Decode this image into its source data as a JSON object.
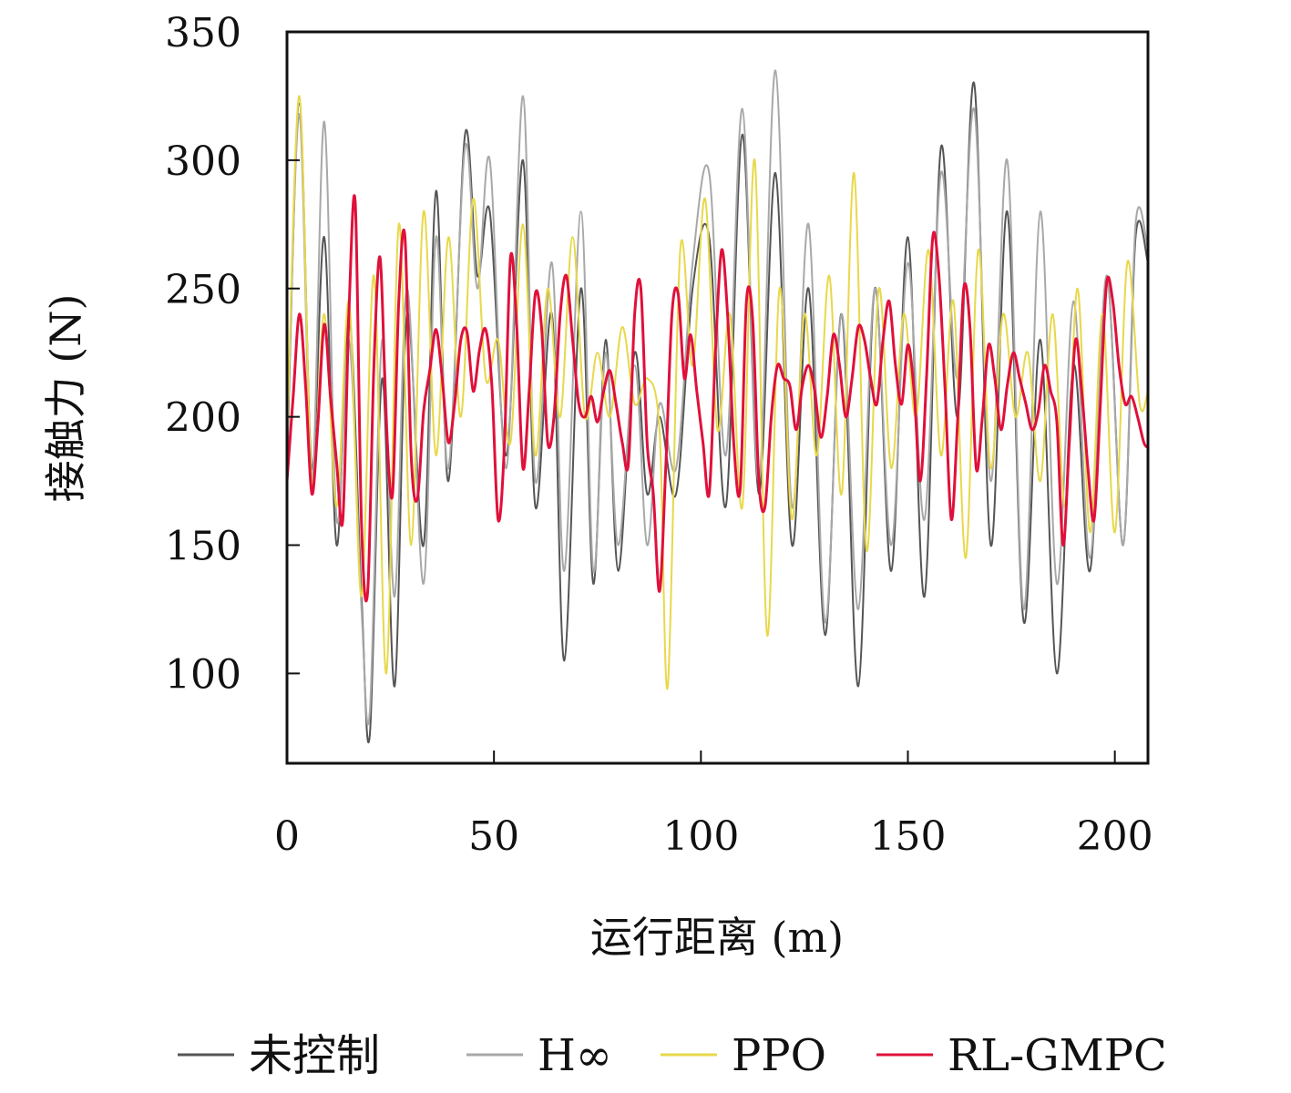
{
  "chart_data": {
    "type": "line",
    "xlabel": "运行距离 (m)",
    "ylabel": "接触力 (N)",
    "xlim": [
      0,
      208
    ],
    "ylim": [
      65,
      350
    ],
    "xticks": [
      0,
      50,
      100,
      150,
      200
    ],
    "yticks": [
      100,
      150,
      200,
      250,
      300,
      350
    ],
    "grid": false,
    "legend_position": "bottom",
    "series": [
      {
        "name": "未控制",
        "color": "#555555",
        "x": [
          0,
          3,
          6,
          9,
          12,
          15,
          18,
          20,
          23,
          26,
          29,
          33,
          36,
          39,
          43,
          46,
          49,
          53,
          57,
          60,
          64,
          67,
          71,
          74,
          77,
          80,
          84,
          87,
          90,
          94,
          98,
          102,
          106,
          110,
          114,
          118,
          122,
          126,
          130,
          134,
          138,
          142,
          146,
          150,
          154,
          158,
          162,
          166,
          170,
          174,
          178,
          182,
          186,
          190,
          194,
          198,
          202,
          205,
          208
        ],
        "y": [
          180,
          322,
          180,
          270,
          150,
          240,
          130,
          76,
          215,
          95,
          240,
          150,
          288,
          175,
          310,
          255,
          280,
          185,
          300,
          165,
          240,
          105,
          250,
          135,
          230,
          140,
          225,
          170,
          200,
          170,
          250,
          270,
          165,
          310,
          170,
          295,
          150,
          250,
          115,
          240,
          95,
          250,
          140,
          270,
          130,
          305,
          200,
          330,
          150,
          280,
          120,
          230,
          100,
          220,
          140,
          255,
          150,
          270,
          260
        ]
      },
      {
        "name": "H∞",
        "color": "#a8a8a8",
        "x": [
          0,
          3,
          6,
          9,
          12,
          15,
          18,
          20,
          23,
          26,
          29,
          33,
          36,
          39,
          43,
          46,
          49,
          53,
          57,
          60,
          64,
          67,
          71,
          74,
          77,
          80,
          84,
          87,
          90,
          94,
          98,
          102,
          106,
          110,
          114,
          118,
          122,
          126,
          130,
          134,
          138,
          142,
          146,
          150,
          154,
          158,
          162,
          166,
          170,
          174,
          178,
          182,
          186,
          190,
          194,
          198,
          202,
          205,
          208
        ],
        "y": [
          185,
          318,
          175,
          315,
          160,
          230,
          125,
          85,
          230,
          130,
          250,
          135,
          270,
          180,
          305,
          250,
          300,
          180,
          325,
          175,
          260,
          140,
          280,
          140,
          225,
          150,
          220,
          150,
          205,
          180,
          260,
          295,
          185,
          320,
          175,
          335,
          165,
          275,
          120,
          240,
          125,
          250,
          150,
          260,
          160,
          295,
          215,
          320,
          175,
          300,
          125,
          280,
          135,
          245,
          145,
          255,
          150,
          275,
          265
        ]
      },
      {
        "name": "PPO",
        "color": "#e8d84a",
        "x": [
          0,
          3,
          6,
          9,
          12,
          15,
          18,
          21,
          24,
          27,
          30,
          33,
          36,
          39,
          42,
          45,
          48,
          51,
          54,
          57,
          60,
          63,
          66,
          69,
          72,
          75,
          78,
          81,
          84,
          87,
          90,
          92,
          95,
          98,
          101,
          104,
          107,
          110,
          113,
          116,
          119,
          122,
          125,
          128,
          131,
          134,
          137,
          140,
          143,
          146,
          149,
          152,
          155,
          158,
          161,
          164,
          167,
          170,
          173,
          176,
          179,
          182,
          185,
          188,
          191,
          194,
          197,
          200,
          203,
          206,
          208
        ],
        "y": [
          190,
          325,
          175,
          240,
          165,
          245,
          130,
          255,
          100,
          275,
          150,
          280,
          185,
          270,
          200,
          285,
          215,
          230,
          190,
          275,
          185,
          250,
          200,
          270,
          200,
          225,
          200,
          235,
          205,
          215,
          195,
          95,
          265,
          220,
          285,
          195,
          240,
          165,
          300,
          115,
          250,
          160,
          240,
          185,
          255,
          170,
          295,
          148,
          250,
          180,
          240,
          200,
          265,
          185,
          245,
          145,
          265,
          180,
          240,
          200,
          225,
          175,
          240,
          165,
          250,
          155,
          240,
          155,
          260,
          205,
          210
        ]
      },
      {
        "name": "RL-GMPC",
        "color": "#e0103a",
        "x": [
          0,
          1.5,
          3,
          4.5,
          6,
          7.5,
          9,
          10.5,
          12,
          13.5,
          15,
          16.5,
          18,
          19.5,
          21,
          22.5,
          24,
          25.5,
          27,
          28.5,
          30,
          31.5,
          33,
          34.5,
          36,
          37.5,
          39,
          40.5,
          42,
          43.5,
          45,
          46.5,
          48,
          49.5,
          51,
          52.5,
          54,
          55.5,
          57,
          58.5,
          60,
          61.5,
          63,
          64.5,
          66,
          67.5,
          69,
          70.5,
          72,
          73.5,
          75,
          76.5,
          78,
          79.5,
          81,
          82.5,
          84,
          85.5,
          87,
          88.5,
          90,
          91.5,
          93,
          94.5,
          96,
          97.5,
          99,
          100.5,
          102,
          103.5,
          105,
          106.5,
          108,
          109.5,
          111,
          112.5,
          114,
          115.5,
          117,
          118.5,
          120,
          121.5,
          123,
          124.5,
          126,
          127.5,
          129,
          130.5,
          132,
          133.5,
          135,
          136.5,
          138,
          139.5,
          141,
          142.5,
          144,
          145.5,
          147,
          148.5,
          150,
          151.5,
          153,
          154.5,
          156,
          157.5,
          159,
          160.5,
          162,
          163.5,
          165,
          166.5,
          168,
          169.5,
          171,
          172.5,
          174,
          175.5,
          177,
          178.5,
          180,
          181.5,
          183,
          184.5,
          186,
          187.5,
          189,
          190.5,
          192,
          193.5,
          195,
          196.5,
          198,
          199.5,
          201,
          202.5,
          204,
          205.5,
          207,
          208
        ],
        "y": [
          175,
          208,
          240,
          212,
          170,
          198,
          236,
          208,
          182,
          160,
          242,
          283,
          158,
          132,
          220,
          262,
          198,
          170,
          245,
          270,
          185,
          168,
          202,
          218,
          234,
          215,
          190,
          205,
          230,
          233,
          210,
          226,
          234,
          212,
          160,
          188,
          262,
          235,
          180,
          210,
          248,
          235,
          190,
          200,
          240,
          255,
          230,
          205,
          200,
          208,
          198,
          210,
          218,
          205,
          190,
          182,
          240,
          250,
          190,
          170,
          132,
          180,
          240,
          248,
          215,
          232,
          210,
          190,
          170,
          225,
          265,
          238,
          188,
          172,
          245,
          238,
          175,
          165,
          200,
          220,
          215,
          212,
          195,
          212,
          220,
          210,
          192,
          208,
          232,
          220,
          200,
          215,
          235,
          230,
          215,
          205,
          230,
          245,
          220,
          205,
          228,
          210,
          175,
          215,
          270,
          255,
          210,
          160,
          198,
          250,
          235,
          180,
          200,
          228,
          215,
          195,
          212,
          225,
          215,
          205,
          195,
          202,
          220,
          210,
          198,
          150,
          190,
          230,
          210,
          180,
          160,
          205,
          252,
          245,
          220,
          205,
          208,
          200,
          190,
          188
        ]
      }
    ]
  }
}
